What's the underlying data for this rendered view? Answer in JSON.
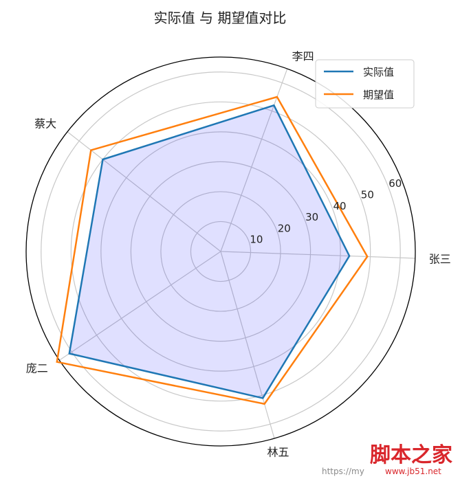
{
  "chart_data": {
    "type": "radar",
    "title": "实际值 与 期望值对比",
    "categories": [
      "张三",
      "李四",
      "蔡大",
      "庞二",
      "林五"
    ],
    "series": [
      {
        "name": "实际值",
        "values": [
          43,
          52,
          50,
          61,
          51
        ],
        "color": "#1f77b4",
        "fill": "#0000ff",
        "fill_opacity": 0.12
      },
      {
        "name": "期望值",
        "values": [
          49,
          55,
          55,
          66,
          53
        ],
        "color": "#ff7f0e"
      }
    ],
    "rlim": [
      0,
      65
    ],
    "r_ticks": [
      10,
      20,
      30,
      40,
      50,
      60
    ],
    "grid": true,
    "legend": "top-right"
  },
  "watermark": {
    "text": "脚本之家",
    "url_left": "https://my",
    "url_right": "www.jb51.net"
  }
}
